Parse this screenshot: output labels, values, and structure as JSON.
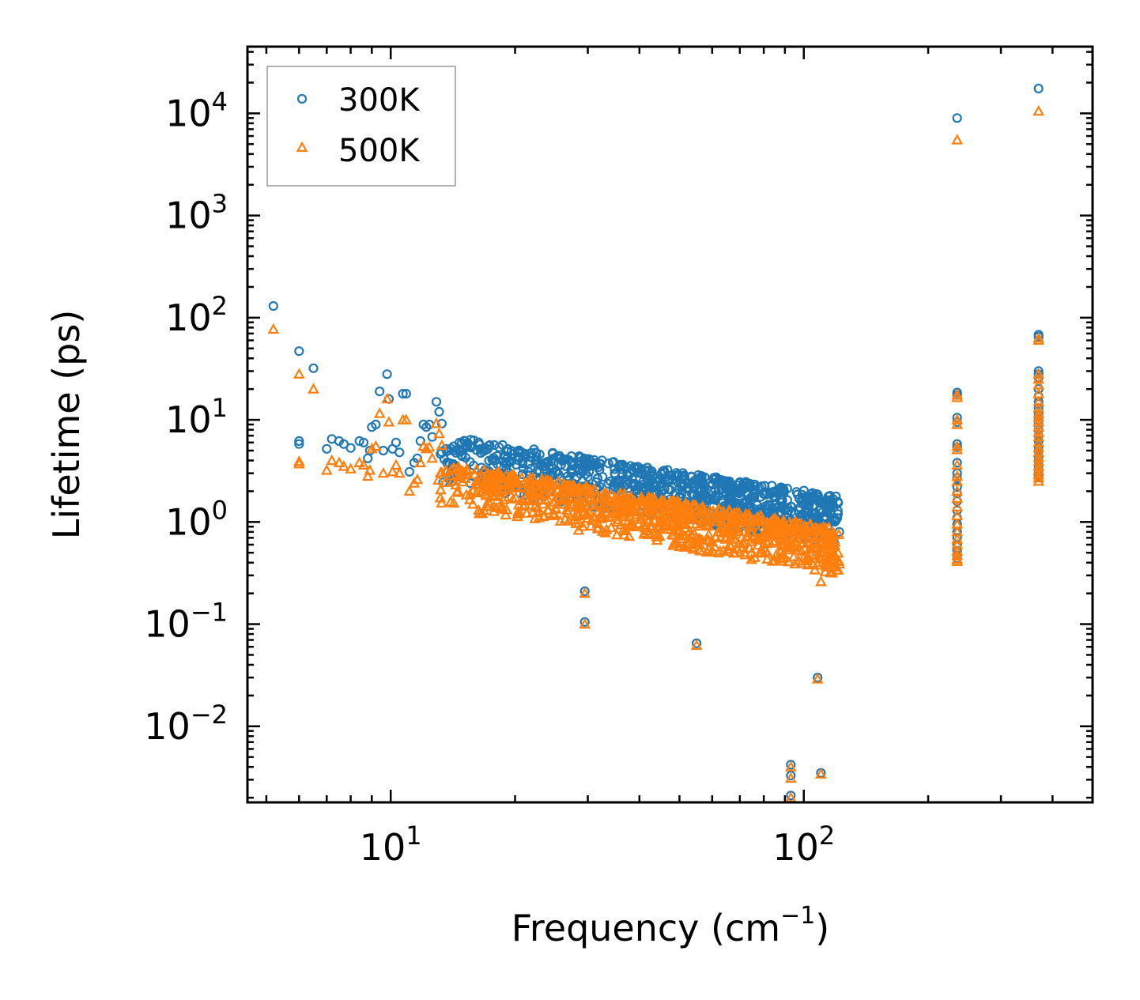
{
  "chart_data": {
    "type": "scatter",
    "xscale": "log",
    "yscale": "log",
    "xlim": [
      4.5,
      500
    ],
    "ylim": [
      0.0018,
      45000
    ],
    "xlabel": "Frequency (cm",
    "xlabel_sup": "−1",
    "xlabel_end": ")",
    "ylabel": "Lifetime (ps)",
    "x_ticks": [
      {
        "value": 10,
        "base": "10",
        "exp": "1"
      },
      {
        "value": 100,
        "base": "10",
        "exp": "2"
      }
    ],
    "y_ticks": [
      {
        "value": 0.01,
        "base": "10",
        "exp": "−2"
      },
      {
        "value": 0.1,
        "base": "10",
        "exp": "−1"
      },
      {
        "value": 1,
        "base": "10",
        "exp": "0"
      },
      {
        "value": 10,
        "base": "10",
        "exp": "1"
      },
      {
        "value": 100,
        "base": "10",
        "exp": "2"
      },
      {
        "value": 1000,
        "base": "10",
        "exp": "3"
      },
      {
        "value": 10000,
        "base": "10",
        "exp": "4"
      }
    ],
    "legend_position": "top-left",
    "series": [
      {
        "name": "300K",
        "marker": "circle",
        "color": "#1f77b4",
        "points": [
          [
            5.2,
            130
          ],
          [
            6.0,
            47
          ],
          [
            6.5,
            32
          ],
          [
            6.0,
            6.2
          ],
          [
            6.0,
            5.8
          ],
          [
            7.0,
            5.2
          ],
          [
            7.2,
            6.5
          ],
          [
            7.5,
            6.2
          ],
          [
            7.7,
            5.8
          ],
          [
            8.0,
            5.3
          ],
          [
            8.4,
            6.2
          ],
          [
            8.6,
            6.0
          ],
          [
            8.8,
            4.2
          ],
          [
            8.9,
            5.0
          ],
          [
            9.0,
            8.5
          ],
          [
            9.2,
            9.0
          ],
          [
            9.4,
            19
          ],
          [
            9.6,
            5.0
          ],
          [
            9.8,
            28
          ],
          [
            9.9,
            16
          ],
          [
            10.1,
            5.2
          ],
          [
            10.3,
            6.0
          ],
          [
            10.5,
            4.8
          ],
          [
            10.7,
            18
          ],
          [
            10.9,
            18
          ],
          [
            11.1,
            3.1
          ],
          [
            11.4,
            3.8
          ],
          [
            11.6,
            4.2
          ],
          [
            11.8,
            6.2
          ],
          [
            12.0,
            9.0
          ],
          [
            12.2,
            8.5
          ],
          [
            12.4,
            9.0
          ],
          [
            12.6,
            6.8
          ],
          [
            12.9,
            15
          ],
          [
            13.1,
            12
          ],
          [
            13.3,
            9.2
          ],
          [
            13.6,
            5.2
          ],
          [
            14.2,
            5.5
          ],
          [
            14.8,
            5.0
          ],
          [
            29.5,
            0.21
          ],
          [
            29.5,
            0.105
          ],
          [
            55,
            0.065
          ],
          [
            93,
            0.0042
          ],
          [
            93,
            0.0033
          ],
          [
            93,
            0.0021
          ],
          [
            108,
            0.03
          ],
          [
            110,
            0.0035
          ],
          [
            235,
            9000
          ],
          [
            235,
            18.5
          ],
          [
            235,
            17.5
          ],
          [
            235,
            10.5
          ],
          [
            235,
            9.5
          ],
          [
            235,
            5.8
          ],
          [
            235,
            5.4
          ],
          [
            235,
            3.8
          ],
          [
            235,
            3.0
          ],
          [
            235,
            2.7
          ],
          [
            235,
            2.2
          ],
          [
            235,
            1.9
          ],
          [
            235,
            1.6
          ],
          [
            235,
            1.3
          ],
          [
            235,
            1.1
          ],
          [
            235,
            0.95
          ],
          [
            235,
            0.8
          ],
          [
            235,
            0.7
          ],
          [
            235,
            0.6
          ],
          [
            235,
            0.52
          ],
          [
            235,
            0.47
          ],
          [
            235,
            0.44
          ],
          [
            370,
            17500
          ],
          [
            370,
            68
          ],
          [
            370,
            65
          ],
          [
            370,
            30
          ],
          [
            370,
            28
          ],
          [
            370,
            26
          ],
          [
            370,
            20
          ],
          [
            370,
            17
          ],
          [
            370,
            15
          ],
          [
            370,
            13
          ],
          [
            370,
            12
          ],
          [
            370,
            11
          ],
          [
            370,
            10
          ],
          [
            370,
            9
          ],
          [
            370,
            8
          ],
          [
            370,
            7
          ],
          [
            370,
            6.2
          ],
          [
            370,
            5.5
          ],
          [
            370,
            5
          ],
          [
            370,
            4.4
          ],
          [
            370,
            4
          ],
          [
            370,
            3.6
          ],
          [
            370,
            3.3
          ],
          [
            370,
            3.0
          ],
          [
            370,
            2.8
          ]
        ]
      },
      {
        "name": "500K",
        "marker": "triangle",
        "color": "#ff7f0e",
        "points": [
          [
            5.2,
            77
          ],
          [
            6.0,
            28
          ],
          [
            6.5,
            20
          ],
          [
            6.0,
            3.9
          ],
          [
            6.0,
            3.7
          ],
          [
            7.0,
            3.2
          ],
          [
            7.2,
            4.0
          ],
          [
            7.5,
            3.8
          ],
          [
            7.7,
            3.5
          ],
          [
            8.0,
            3.3
          ],
          [
            8.4,
            3.8
          ],
          [
            8.6,
            3.6
          ],
          [
            8.8,
            2.8
          ],
          [
            8.9,
            3.2
          ],
          [
            9.0,
            5.2
          ],
          [
            9.2,
            5.5
          ],
          [
            9.4,
            11.5
          ],
          [
            9.6,
            3.0
          ],
          [
            9.8,
            16
          ],
          [
            9.9,
            9.5
          ],
          [
            10.1,
            3.1
          ],
          [
            10.3,
            3.6
          ],
          [
            10.5,
            3.0
          ],
          [
            10.7,
            10
          ],
          [
            10.9,
            10
          ],
          [
            11.1,
            2.0
          ],
          [
            11.4,
            2.4
          ],
          [
            11.6,
            2.6
          ],
          [
            11.8,
            3.8
          ],
          [
            12.0,
            5.5
          ],
          [
            12.2,
            5.2
          ],
          [
            12.4,
            5.4
          ],
          [
            12.6,
            4.2
          ],
          [
            12.9,
            9.2
          ],
          [
            13.1,
            7.3
          ],
          [
            13.3,
            5.6
          ],
          [
            13.6,
            3.2
          ],
          [
            14.2,
            3.4
          ],
          [
            14.8,
            3.1
          ],
          [
            29.5,
            0.2
          ],
          [
            29.5,
            0.1
          ],
          [
            55,
            0.062
          ],
          [
            93,
            0.004
          ],
          [
            93,
            0.0031
          ],
          [
            93,
            0.002
          ],
          [
            108,
            0.029
          ],
          [
            110,
            0.0034
          ],
          [
            110,
            0.26
          ],
          [
            235,
            5500
          ],
          [
            235,
            17.5
          ],
          [
            235,
            16.5
          ],
          [
            235,
            10
          ],
          [
            235,
            9
          ],
          [
            235,
            5.5
          ],
          [
            235,
            5.1
          ],
          [
            235,
            3.6
          ],
          [
            235,
            2.8
          ],
          [
            235,
            2.5
          ],
          [
            235,
            2.0
          ],
          [
            235,
            1.7
          ],
          [
            235,
            1.4
          ],
          [
            235,
            1.15
          ],
          [
            235,
            0.95
          ],
          [
            235,
            0.8
          ],
          [
            235,
            0.68
          ],
          [
            235,
            0.6
          ],
          [
            235,
            0.52
          ],
          [
            235,
            0.47
          ],
          [
            235,
            0.43
          ],
          [
            235,
            0.41
          ],
          [
            370,
            10500
          ],
          [
            370,
            63
          ],
          [
            370,
            60
          ],
          [
            370,
            28
          ],
          [
            370,
            25
          ],
          [
            370,
            22
          ],
          [
            370,
            18
          ],
          [
            370,
            15
          ],
          [
            370,
            13
          ],
          [
            370,
            11.5
          ],
          [
            370,
            10.5
          ],
          [
            370,
            9.5
          ],
          [
            370,
            8.5
          ],
          [
            370,
            7.5
          ],
          [
            370,
            6.8
          ],
          [
            370,
            6
          ],
          [
            370,
            5.3
          ],
          [
            370,
            4.8
          ],
          [
            370,
            4.3
          ],
          [
            370,
            3.9
          ],
          [
            370,
            3.5
          ],
          [
            370,
            3.2
          ],
          [
            370,
            2.9
          ],
          [
            370,
            2.7
          ],
          [
            370,
            2.5
          ]
        ]
      }
    ],
    "band": {
      "description_x_range": [
        13,
        122
      ],
      "series": [
        {
          "name": "300K",
          "start_value": 4.8,
          "slope": -0.62,
          "spread": [
            0.5,
            1.5
          ]
        },
        {
          "name": "500K",
          "start_value": 2.8,
          "slope": -0.68,
          "spread": [
            0.5,
            1.4
          ]
        }
      ]
    }
  }
}
